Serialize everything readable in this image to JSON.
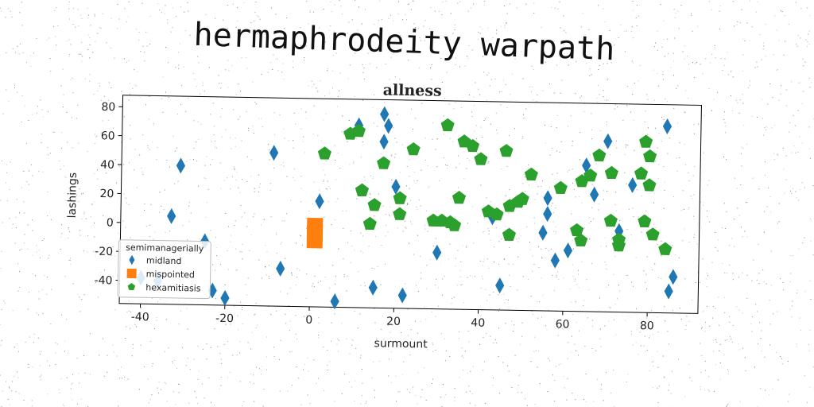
{
  "heading": "hermaphrodeity warpath",
  "chart_data": {
    "type": "scatter",
    "title": "allness",
    "xlabel": "surmount",
    "ylabel": "lashings",
    "xlim": [
      -45,
      92
    ],
    "ylim": [
      -56,
      88
    ],
    "xticks": [
      -40,
      -20,
      0,
      20,
      40,
      60,
      80
    ],
    "yticks": [
      -40,
      -20,
      0,
      20,
      40,
      60,
      80
    ],
    "grid": false,
    "legend": {
      "title": "semimanagerially",
      "placement": "lower-left"
    },
    "series": [
      {
        "name": "midland",
        "marker": "diamond",
        "color": "#1f77b4",
        "points": [
          [
            -31,
            40
          ],
          [
            -33,
            5
          ],
          [
            -25,
            -12
          ],
          [
            -23,
            -46
          ],
          [
            -20,
            -51
          ],
          [
            -40,
            -38
          ],
          [
            -36,
            -40
          ],
          [
            -9,
            50
          ],
          [
            -7,
            -30
          ],
          [
            2,
            17
          ],
          [
            6,
            -52
          ],
          [
            11,
            70
          ],
          [
            15,
            -42
          ],
          [
            17,
            78
          ],
          [
            17,
            59
          ],
          [
            18,
            70
          ],
          [
            20,
            28
          ],
          [
            22,
            -47
          ],
          [
            30,
            -17
          ],
          [
            43,
            8
          ],
          [
            45,
            -39
          ],
          [
            55,
            -2
          ],
          [
            56,
            22
          ],
          [
            56,
            11
          ],
          [
            58,
            -21
          ],
          [
            61,
            -14
          ],
          [
            65,
            45
          ],
          [
            67,
            25
          ],
          [
            70,
            62
          ],
          [
            73,
            0
          ],
          [
            76,
            32
          ],
          [
            84,
            73
          ],
          [
            85,
            -41
          ],
          [
            86,
            -31
          ]
        ]
      },
      {
        "name": "mispointed",
        "marker": "square",
        "color": "#ff7f0e",
        "points": [
          [
            1,
            -5
          ],
          [
            1,
            -10
          ],
          [
            1,
            0
          ]
        ]
      },
      {
        "name": "hexamitiasis",
        "marker": "pentagon",
        "color": "#2ca02c",
        "points": [
          [
            3,
            50
          ],
          [
            9,
            64
          ],
          [
            11,
            66
          ],
          [
            12,
            25
          ],
          [
            14,
            2
          ],
          [
            15,
            15
          ],
          [
            17,
            44
          ],
          [
            21,
            20
          ],
          [
            21,
            9
          ],
          [
            24,
            54
          ],
          [
            29,
            5
          ],
          [
            31,
            5
          ],
          [
            32,
            71
          ],
          [
            33,
            4
          ],
          [
            34,
            2
          ],
          [
            35,
            21
          ],
          [
            36,
            60
          ],
          [
            38,
            57
          ],
          [
            40,
            48
          ],
          [
            42,
            12
          ],
          [
            44,
            10
          ],
          [
            46,
            54
          ],
          [
            47,
            -4
          ],
          [
            47,
            16
          ],
          [
            49,
            19
          ],
          [
            50,
            21
          ],
          [
            52,
            38
          ],
          [
            59,
            29
          ],
          [
            63,
            0
          ],
          [
            64,
            -7
          ],
          [
            64,
            34
          ],
          [
            66,
            38
          ],
          [
            68,
            52
          ],
          [
            71,
            7
          ],
          [
            71,
            40
          ],
          [
            73,
            -6
          ],
          [
            73,
            -10
          ],
          [
            78,
            40
          ],
          [
            79,
            62
          ],
          [
            79,
            7
          ],
          [
            80,
            32
          ],
          [
            80,
            52
          ],
          [
            81,
            -2
          ],
          [
            84,
            -12
          ]
        ]
      }
    ]
  }
}
